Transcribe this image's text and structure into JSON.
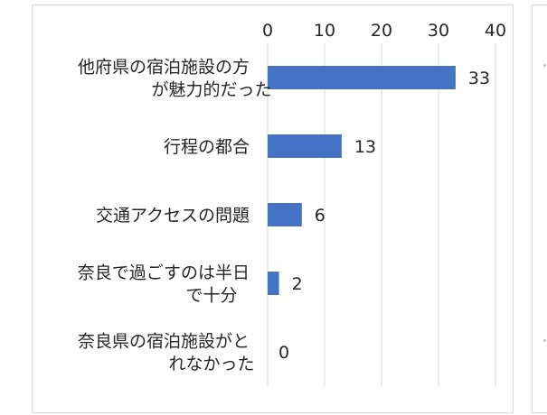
{
  "chart_data": {
    "type": "bar",
    "orientation": "horizontal",
    "categories": [
      [
        "他府県の宿泊施設の方",
        "が魅力的だった"
      ],
      [
        "行程の都合"
      ],
      [
        "交通アクセスの問題"
      ],
      [
        "奈良で過ごすのは半日",
        "で十分"
      ],
      [
        "奈良県の宿泊施設がと",
        "れなかった"
      ]
    ],
    "values": [
      33,
      13,
      6,
      2,
      0
    ],
    "xlim": [
      0,
      40
    ],
    "x_ticks": [
      0,
      10,
      20,
      30,
      40
    ],
    "x_axis_position": "top",
    "grid": true,
    "data_labels": true,
    "title": "",
    "xlabel": "",
    "ylabel": "",
    "bar_color": "#4472c4",
    "grid_color": "#d9d9d9"
  }
}
